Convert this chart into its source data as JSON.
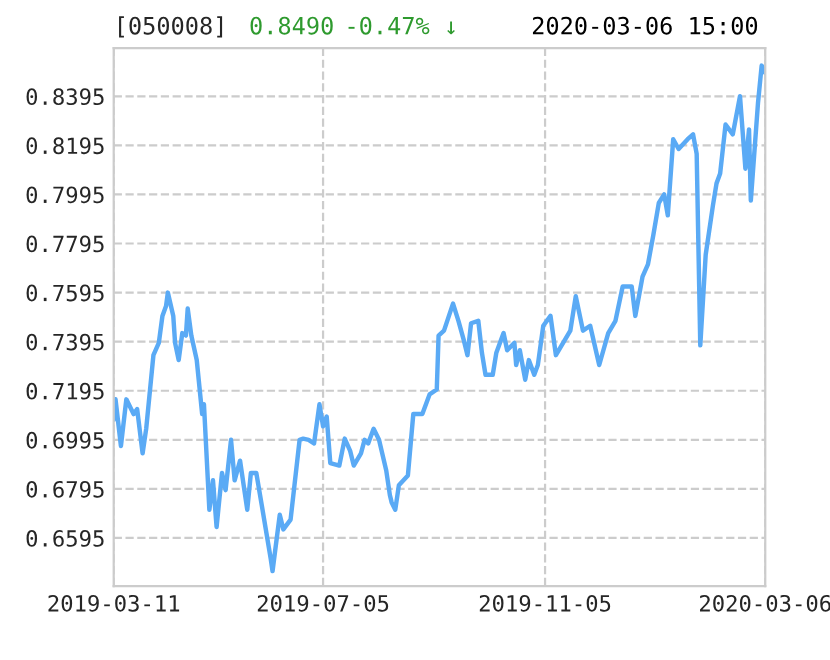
{
  "chart_data": {
    "type": "line",
    "title": "[050008]",
    "annotations": [
      "0.8490",
      "-0.47% ↓",
      "2020-03-06 15:00"
    ],
    "x": [
      "2019-03-11",
      "2019-03-12",
      "2019-03-15",
      "2019-03-18",
      "2019-03-22",
      "2019-03-24",
      "2019-03-27",
      "2019-03-29",
      "2019-04-02",
      "2019-04-05",
      "2019-04-07",
      "2019-04-09",
      "2019-04-10",
      "2019-04-13",
      "2019-04-14",
      "2019-04-16",
      "2019-04-18",
      "2019-04-20",
      "2019-04-21",
      "2019-04-23",
      "2019-04-26",
      "2019-04-29",
      "2019-04-30",
      "2019-05-03",
      "2019-05-05",
      "2019-05-07",
      "2019-05-10",
      "2019-05-12",
      "2019-05-15",
      "2019-05-17",
      "2019-05-20",
      "2019-05-24",
      "2019-05-26",
      "2019-05-29",
      "2019-06-01",
      "2019-06-06",
      "2019-06-07",
      "2019-06-11",
      "2019-06-13",
      "2019-06-17",
      "2019-06-22",
      "2019-06-24",
      "2019-06-27",
      "2019-06-30",
      "2019-07-03",
      "2019-07-05",
      "2019-07-07",
      "2019-07-09",
      "2019-07-14",
      "2019-07-17",
      "2019-07-20",
      "2019-07-22",
      "2019-07-26",
      "2019-07-28",
      "2019-07-30",
      "2019-08-02",
      "2019-08-05",
      "2019-08-09",
      "2019-08-11",
      "2019-08-12",
      "2019-08-14",
      "2019-08-16",
      "2019-08-21",
      "2019-08-24",
      "2019-08-29",
      "2019-09-02",
      "2019-09-06",
      "2019-09-07",
      "2019-09-10",
      "2019-09-15",
      "2019-09-18",
      "2019-09-21",
      "2019-09-23",
      "2019-09-25",
      "2019-09-29",
      "2019-10-01",
      "2019-10-03",
      "2019-10-07",
      "2019-10-09",
      "2019-10-13",
      "2019-10-15",
      "2019-10-19",
      "2019-10-20",
      "2019-10-22",
      "2019-10-25",
      "2019-10-27",
      "2019-10-30",
      "2019-11-01",
      "2019-11-04",
      "2019-11-08",
      "2019-11-11",
      "2019-11-15",
      "2019-11-19",
      "2019-11-22",
      "2019-11-26",
      "2019-11-30",
      "2019-12-05",
      "2019-12-10",
      "2019-12-14",
      "2019-12-18",
      "2019-12-23",
      "2019-12-25",
      "2019-12-29",
      "2020-01-01",
      "2020-01-04",
      "2020-01-07",
      "2020-01-10",
      "2020-01-12",
      "2020-01-15",
      "2020-01-18",
      "2020-01-23",
      "2020-01-26",
      "2020-01-28",
      "2020-01-30",
      "2020-02-02",
      "2020-02-06",
      "2020-02-08",
      "2020-02-10",
      "2020-02-13",
      "2020-02-17",
      "2020-02-21",
      "2020-02-24",
      "2020-02-26",
      "2020-02-27",
      "2020-03-02",
      "2020-03-04",
      "2020-03-06"
    ],
    "series": [
      {
        "color": "#5aaaf5",
        "values": [
          0.7077,
          0.716,
          0.697,
          0.716,
          0.71,
          0.712,
          0.694,
          0.704,
          0.734,
          0.739,
          0.75,
          0.754,
          0.7595,
          0.75,
          0.739,
          0.732,
          0.743,
          0.742,
          0.753,
          0.742,
          0.732,
          0.71,
          0.714,
          0.671,
          0.683,
          0.664,
          0.686,
          0.679,
          0.6995,
          0.683,
          0.691,
          0.671,
          0.686,
          0.686,
          0.673,
          0.651,
          0.646,
          0.669,
          0.663,
          0.667,
          0.6995,
          0.7,
          0.6995,
          0.698,
          0.714,
          0.705,
          0.709,
          0.69,
          0.689,
          0.7,
          0.695,
          0.689,
          0.694,
          0.6995,
          0.698,
          0.704,
          0.6995,
          0.687,
          0.677,
          0.674,
          0.671,
          0.681,
          0.685,
          0.71,
          0.71,
          0.718,
          0.72,
          0.742,
          0.744,
          0.755,
          0.748,
          0.74,
          0.734,
          0.747,
          0.748,
          0.735,
          0.726,
          0.726,
          0.735,
          0.743,
          0.736,
          0.739,
          0.73,
          0.736,
          0.724,
          0.732,
          0.726,
          0.73,
          0.746,
          0.75,
          0.734,
          0.739,
          0.744,
          0.758,
          0.744,
          0.746,
          0.73,
          0.743,
          0.748,
          0.762,
          0.762,
          0.75,
          0.766,
          0.771,
          0.783,
          0.796,
          0.7995,
          0.791,
          0.822,
          0.818,
          0.822,
          0.824,
          0.816,
          0.738,
          0.775,
          0.795,
          0.804,
          0.808,
          0.828,
          0.824,
          0.8395,
          0.81,
          0.826,
          0.797,
          0.837,
          0.852,
          0.849
        ]
      }
    ],
    "xlim": [
      "2019-03-11",
      "2020-03-06"
    ],
    "xticks": [
      "2019-03-11",
      "2019-07-05",
      "2019-11-05",
      "2020-03-06"
    ],
    "ylim": [
      0.6399,
      0.8591
    ],
    "yticks": [
      0.6595,
      0.6795,
      0.6995,
      0.7195,
      0.7395,
      0.7595,
      0.7795,
      0.7995,
      0.8195,
      0.8395
    ],
    "grid": true
  }
}
